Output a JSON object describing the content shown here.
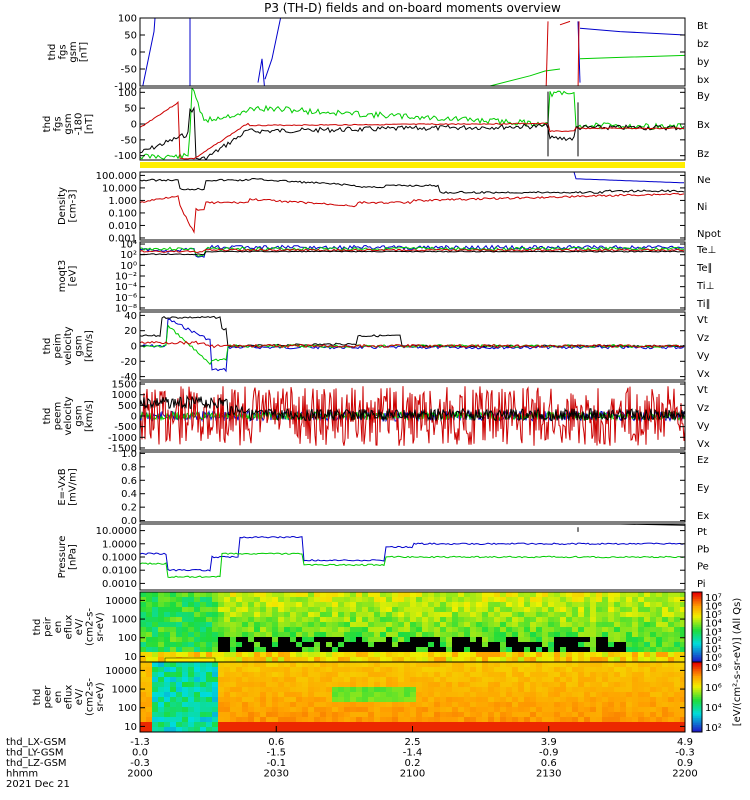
{
  "title": "P3 (TH-D) fields and on-board moments overview",
  "colors": {
    "black": "#000000",
    "red": "#cc0000",
    "green": "#00cc00",
    "blue": "#0000cc",
    "yellow": "#ffee00"
  },
  "chart_data": [
    {
      "type": "line",
      "id": "fgs1",
      "ylabel_lines": [
        "thd",
        "fgs",
        "gsm",
        "[nT]"
      ],
      "yticks": [
        "100",
        "50",
        "0",
        "-50",
        "-100"
      ],
      "ylim": [
        -100,
        100
      ],
      "legend": [
        {
          "name": "Bt",
          "color": "black"
        },
        {
          "name": "bz",
          "color": "red"
        },
        {
          "name": "by",
          "color": "green"
        },
        {
          "name": "bx",
          "color": "blue"
        }
      ]
    },
    {
      "type": "line",
      "id": "fgs2",
      "ylabel_lines": [
        "thd",
        "fgs",
        "gsm",
        "-180",
        "[nT]"
      ],
      "yticks": [
        "100",
        "50",
        "0",
        "-50",
        "-100"
      ],
      "ylim": [
        -120,
        100
      ],
      "legend": [
        {
          "name": "By",
          "color": "green"
        },
        {
          "name": "Bx",
          "color": "blue"
        },
        {
          "name": "Bz",
          "color": "red"
        }
      ]
    },
    {
      "type": "line",
      "id": "density",
      "ylabel_lines": [
        "Density",
        "[cm-3]"
      ],
      "yticks": [
        "100.000",
        "10.000",
        "1.000",
        "0.100",
        "0.010",
        "0.001"
      ],
      "yscale": "log",
      "legend": [
        {
          "name": "Ne",
          "color": "red"
        },
        {
          "name": "Ni",
          "color": "black"
        },
        {
          "name": "Npot",
          "color": "blue"
        }
      ]
    },
    {
      "type": "line",
      "id": "temp",
      "ylabel_lines": [
        "moqt3",
        "[eV]"
      ],
      "yticks": [
        "10⁴",
        "10²",
        "10⁰",
        "10⁻²",
        "10⁻⁴",
        "10⁻⁶",
        "10⁻⁸"
      ],
      "yscale": "log",
      "legend": [
        {
          "name": "Te⊥",
          "color": "red"
        },
        {
          "name": "Te∥",
          "color": "black"
        },
        {
          "name": "Ti⊥",
          "color": "blue"
        },
        {
          "name": "Ti∥",
          "color": "green"
        }
      ]
    },
    {
      "type": "line",
      "id": "peim",
      "ylabel_lines": [
        "thd",
        "peim",
        "velocity",
        "gsm",
        "[km/s]"
      ],
      "yticks": [
        "40",
        "20",
        "0",
        "-20",
        "-40"
      ],
      "ylim": [
        -40,
        40
      ],
      "legend": [
        {
          "name": "Vt",
          "color": "black"
        },
        {
          "name": "Vz",
          "color": "red"
        },
        {
          "name": "Vy",
          "color": "green"
        },
        {
          "name": "Vx",
          "color": "blue"
        }
      ]
    },
    {
      "type": "line",
      "id": "peem",
      "ylabel_lines": [
        "thd",
        "peem",
        "velocity",
        "gsm",
        "[km/s]"
      ],
      "yticks": [
        "1500",
        "1000",
        "500",
        "0",
        "-500",
        "-1000",
        "-1500"
      ],
      "ylim": [
        -1500,
        1500
      ],
      "legend": [
        {
          "name": "Vt",
          "color": "black"
        },
        {
          "name": "Vz",
          "color": "red"
        },
        {
          "name": "Vy",
          "color": "green"
        },
        {
          "name": "Vx",
          "color": "blue"
        }
      ]
    },
    {
      "type": "line",
      "id": "efield",
      "ylabel_lines": [
        "E=-VxB",
        "[mV/m]"
      ],
      "yticks": [
        "1.0",
        "0.8",
        "0.6",
        "0.4",
        "0.2",
        "0.0"
      ],
      "ylim": [
        0,
        1
      ],
      "legend": [
        {
          "name": "Ez",
          "color": "red"
        },
        {
          "name": "Ey",
          "color": "green"
        },
        {
          "name": "Ex",
          "color": "blue"
        }
      ]
    },
    {
      "type": "line",
      "id": "pressure",
      "ylabel_lines": [
        "Pressure",
        "[nPa]"
      ],
      "yticks": [
        "10.0000",
        "1.0000",
        "0.1000",
        "0.0100",
        "0.0010"
      ],
      "yscale": "log",
      "legend": [
        {
          "name": "Pt",
          "color": "black"
        },
        {
          "name": "Pb",
          "color": "red"
        },
        {
          "name": "Pe",
          "color": "green"
        },
        {
          "name": "Pi",
          "color": "blue"
        }
      ]
    },
    {
      "type": "heatmap",
      "id": "peir",
      "ylabel_lines": [
        "thd",
        "peir",
        "en",
        "eflux",
        "eV/",
        "(cm2-s-",
        "sr-eV)"
      ],
      "yticks": [
        "10000",
        "1000",
        "100",
        "10"
      ],
      "yscale": "log"
    },
    {
      "type": "heatmap",
      "id": "peer",
      "ylabel_lines": [
        "thd",
        "peer",
        "en",
        "eflux",
        "eV/",
        "(cm2-s-",
        "sr-eV)"
      ],
      "yticks": [
        "10000",
        "1000",
        "100",
        "10"
      ],
      "yscale": "log"
    }
  ],
  "colorbar": {
    "upper_ticks": [
      "10⁷",
      "10⁶",
      "10⁵",
      "10⁴",
      "10³",
      "10²",
      "10¹",
      "10⁰"
    ],
    "lower_ticks": [
      "10⁸",
      "10⁶",
      "10⁴",
      "10²"
    ],
    "label": "[eV/(cm²-s-sr-eV)] (All Qs)"
  },
  "xaxis": {
    "row_labels": [
      "thd_LX-GSM",
      "thd_LY-GSM",
      "thd_LZ-GSM",
      "hhmm",
      "2021 Dec 21"
    ],
    "columns": [
      {
        "lx": "-1.3",
        "ly": "0.0",
        "lz": "-0.3",
        "hhmm": "2000"
      },
      {
        "lx": "0.6",
        "ly": "-1.5",
        "lz": "-0.1",
        "hhmm": "2030"
      },
      {
        "lx": "2.5",
        "ly": "-1.4",
        "lz": "0.2",
        "hhmm": "2100"
      },
      {
        "lx": "3.9",
        "ly": "-0.9",
        "lz": "0.6",
        "hhmm": "2130"
      },
      {
        "lx": "4.9",
        "ly": "-0.3",
        "lz": "0.9",
        "hhmm": "2200"
      }
    ]
  }
}
